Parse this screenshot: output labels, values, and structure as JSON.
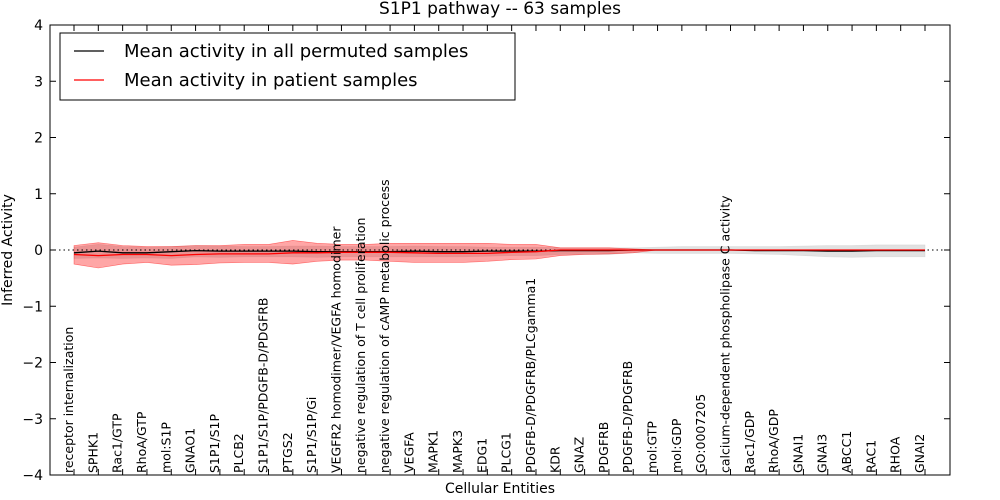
{
  "chart_data": {
    "type": "line",
    "title": "S1P1 pathway -- 63 samples",
    "xlabel": "Cellular Entities",
    "ylabel": "Inferred Activity",
    "ylim": [
      -4,
      4
    ],
    "yticks": [
      -4,
      -3,
      -2,
      -1,
      0,
      1,
      2,
      3,
      4
    ],
    "grid": false,
    "legend_position": "top-left",
    "categories": [
      "receptor internalization",
      "SPHK1",
      "Rac1/GTP",
      "RhoA/GTP",
      "mol:S1P",
      "GNAO1",
      "S1P1/S1P",
      "PLCB2",
      "S1P1/S1P/PDGFB-D/PDGFRB",
      "PTGS2",
      "S1P1/S1P/Gi",
      "VEGFR2 homodimer/VEGFA homodimer",
      "negative regulation of T cell proliferation",
      "negative regulation of cAMP metabolic process",
      "VEGFA",
      "MAPK1",
      "MAPK3",
      "EDG1",
      "PLCG1",
      "PDGFB-D/PDGFRB/PLCgamma1",
      "KDR",
      "GNAZ",
      "PDGFRB",
      "PDGFB-D/PDGFRB",
      "mol:GTP",
      "mol:GDP",
      "GO:0007205",
      "calcium-dependent phospholipase C activity",
      "Rac1/GDP",
      "RhoA/GDP",
      "GNAI1",
      "GNAI3",
      "ABCC1",
      "RAC1",
      "RHOA",
      "GNAI2"
    ],
    "series": [
      {
        "name": "Mean activity in all permuted samples",
        "color": "#000000",
        "values": [
          -0.05,
          -0.02,
          -0.05,
          -0.05,
          -0.03,
          -0.01,
          -0.02,
          -0.02,
          -0.02,
          -0.02,
          -0.03,
          -0.03,
          -0.03,
          -0.03,
          -0.02,
          -0.03,
          -0.03,
          -0.02,
          -0.02,
          -0.02,
          -0.01,
          -0.01,
          -0.01,
          0.0,
          0.0,
          0.0,
          0.0,
          0.0,
          -0.01,
          -0.01,
          -0.01,
          -0.02,
          -0.02,
          -0.01,
          -0.01,
          -0.01
        ],
        "band_upper": [
          0.05,
          0.1,
          0.06,
          0.05,
          0.06,
          0.08,
          0.07,
          0.06,
          0.06,
          0.07,
          0.07,
          0.06,
          0.06,
          0.06,
          0.07,
          0.06,
          0.06,
          0.05,
          0.05,
          0.05,
          0.04,
          0.04,
          0.04,
          0.04,
          0.05,
          0.06,
          0.06,
          0.06,
          0.06,
          0.06,
          0.07,
          0.08,
          0.08,
          0.09,
          0.09,
          0.09
        ],
        "band_lower": [
          -0.15,
          -0.14,
          -0.15,
          -0.14,
          -0.15,
          -0.12,
          -0.13,
          -0.12,
          -0.12,
          -0.12,
          -0.13,
          -0.12,
          -0.12,
          -0.12,
          -0.12,
          -0.12,
          -0.12,
          -0.11,
          -0.1,
          -0.1,
          -0.08,
          -0.08,
          -0.08,
          -0.05,
          -0.06,
          -0.06,
          -0.06,
          -0.06,
          -0.07,
          -0.08,
          -0.1,
          -0.12,
          -0.13,
          -0.12,
          -0.12,
          -0.12
        ],
        "band_color": "#c8c8c8"
      },
      {
        "name": "Mean activity in patient samples",
        "color": "#ff0000",
        "values": [
          -0.08,
          -0.1,
          -0.08,
          -0.08,
          -0.1,
          -0.08,
          -0.07,
          -0.07,
          -0.07,
          -0.05,
          -0.05,
          -0.04,
          -0.04,
          -0.04,
          -0.05,
          -0.06,
          -0.06,
          -0.06,
          -0.04,
          -0.03,
          0.0,
          0.0,
          0.0,
          0.0,
          0.0,
          0.0,
          0.0,
          0.0,
          0.0,
          0.0,
          0.0,
          0.0,
          0.0,
          0.0,
          0.0,
          0.0
        ],
        "band_upper": [
          0.08,
          0.13,
          0.08,
          0.06,
          0.06,
          0.08,
          0.08,
          0.1,
          0.1,
          0.17,
          0.12,
          0.1,
          0.1,
          0.12,
          0.12,
          0.12,
          0.12,
          0.12,
          0.1,
          0.1,
          0.04,
          0.04,
          0.04,
          0.02,
          0.0,
          0.0,
          0.0,
          0.0,
          0.0,
          0.0,
          0.0,
          0.0,
          0.0,
          0.0,
          0.0,
          0.0
        ],
        "band_lower": [
          -0.25,
          -0.32,
          -0.25,
          -0.22,
          -0.27,
          -0.26,
          -0.23,
          -0.22,
          -0.22,
          -0.25,
          -0.2,
          -0.18,
          -0.18,
          -0.2,
          -0.22,
          -0.22,
          -0.22,
          -0.2,
          -0.17,
          -0.16,
          -0.1,
          -0.08,
          -0.07,
          -0.05,
          0.0,
          0.0,
          0.0,
          0.0,
          0.0,
          0.0,
          0.0,
          0.0,
          0.0,
          0.0,
          0.0,
          0.0
        ],
        "band_color": "#ff0000"
      }
    ],
    "reference_line": 0
  }
}
